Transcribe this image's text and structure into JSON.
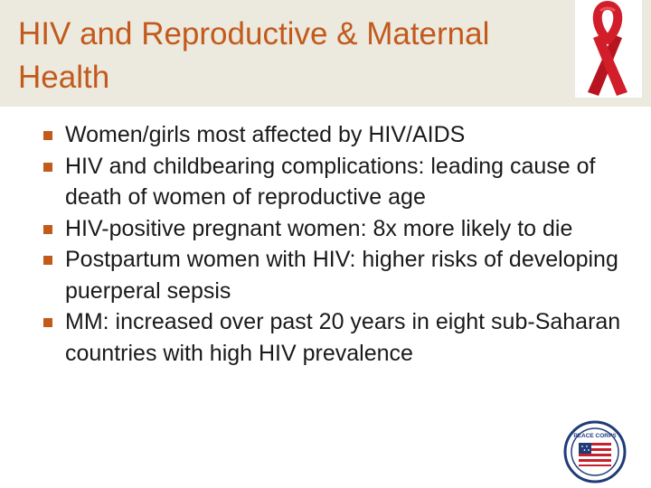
{
  "slide": {
    "title": "HIV and Reproductive & Maternal Health",
    "bullets": [
      "Women/girls most affected by HIV/AIDS",
      "HIV and childbearing complications: leading cause of death of women of reproductive age",
      "HIV-positive pregnant women: 8x more likely to die",
      "Postpartum women with HIV: higher risks of developing puerperal sepsis",
      "MM: increased over past 20 years in eight sub-Saharan countries with high HIV prevalence"
    ]
  },
  "images": {
    "ribbon": "red-awareness-ribbon-icon",
    "seal": "peace-corps-seal-logo",
    "seal_text": "PEACE CORPS"
  },
  "colors": {
    "title": "#c25a1c",
    "title_band": "#ece9de",
    "bullet_marker": "#c25a1c",
    "body_text": "#1a1a1a",
    "ribbon": "#d21e2b"
  }
}
